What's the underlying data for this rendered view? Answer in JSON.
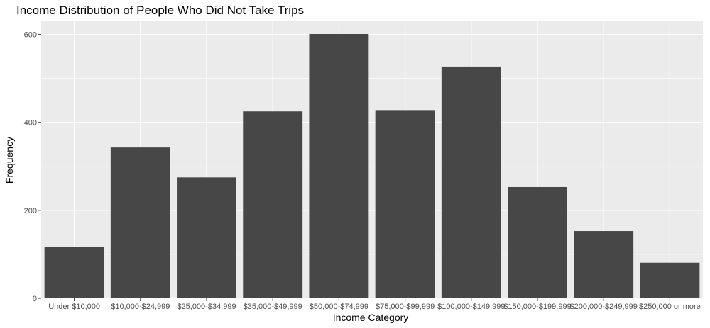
{
  "chart_data": {
    "type": "bar",
    "title": "Income Distribution of People Who Did Not Take Trips",
    "xlabel": "Income Category",
    "ylabel": "Frequency",
    "categories": [
      "Under $10,000",
      "$10,000-$24,999",
      "$25,000-$34,999",
      "$35,000-$49,999",
      "$50,000-$74,999",
      "$75,000-$99,999",
      "$100,000-$149,999",
      "$150,000-$199,999",
      "$200,000-$249,999",
      "$250,000 or more"
    ],
    "values": [
      117,
      343,
      275,
      425,
      601,
      428,
      527,
      253,
      153,
      81
    ],
    "ylim": [
      0,
      630
    ],
    "yticks": [
      0,
      200,
      400,
      600
    ],
    "grid": true,
    "legend": "none"
  },
  "colors": {
    "panel_background": "#ebebeb",
    "grid_major": "#ffffff",
    "bar_fill": "#474747",
    "tick_text": "#4d4d4d",
    "text": "#000000"
  }
}
